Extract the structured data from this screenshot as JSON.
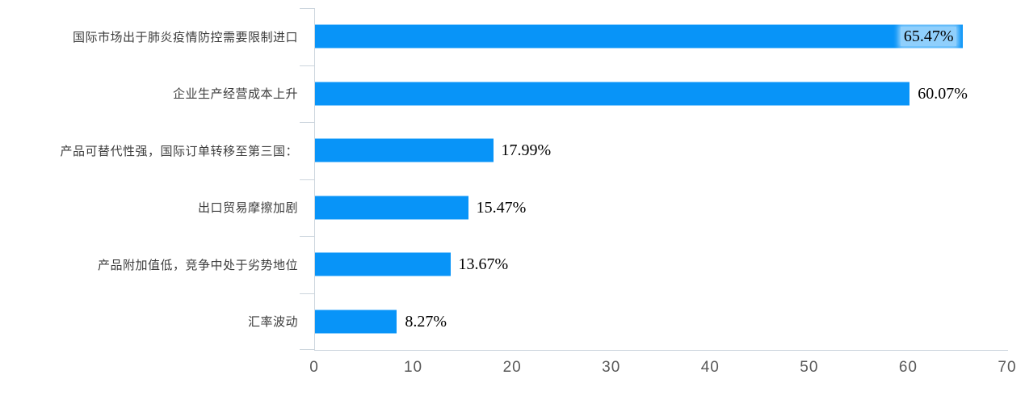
{
  "chart_data": {
    "type": "bar",
    "orientation": "horizontal",
    "title": "",
    "xlabel": "",
    "ylabel": "",
    "categories": [
      "国际市场出于肺炎疫情防控需要限制进口",
      "企业生产经营成本上升",
      "产品可替代性强，国际订单转移至第三国：",
      "出口贸易摩擦加剧",
      "产品附加值低，竞争中处于劣势地位",
      "汇率波动"
    ],
    "values": [
      65.47,
      60.07,
      17.99,
      15.47,
      13.67,
      8.27
    ],
    "value_labels": [
      "65.47%",
      "60.07%",
      "17.99%",
      "15.47%",
      "13.67%",
      "8.27%"
    ],
    "xlim": [
      0,
      70
    ],
    "x_ticks": [
      "0",
      "10",
      "20",
      "30",
      "40",
      "50",
      "60",
      "70"
    ],
    "legend": "none",
    "grid": "off",
    "colors": {
      "bar": "#0894f8",
      "axis_line": "#ccd5dd",
      "x_tick_label": "#595959",
      "category_label": "#3d3d3d",
      "value_label": "#000000"
    }
  }
}
